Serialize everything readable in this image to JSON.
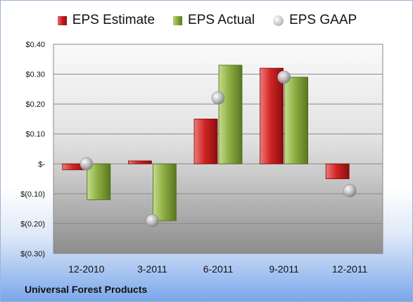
{
  "legend": {
    "estimate": "EPS Estimate",
    "actual": "EPS Actual",
    "gaap": "EPS GAAP"
  },
  "company": "Universal Forest Products",
  "colors": {
    "estimate": "#c41e1e",
    "actual": "#8aaa3e",
    "gaap": "#b8b8b8",
    "plot_bg_top": "#f7f7f7",
    "plot_bg_bottom": "#8e8e8e"
  },
  "chart_data": {
    "type": "bar",
    "categories": [
      "12-2010",
      "3-2011",
      "6-2011",
      "9-2011",
      "12-2011"
    ],
    "series": [
      {
        "name": "EPS Estimate",
        "values": [
          -0.02,
          0.01,
          0.15,
          0.32,
          -0.05
        ]
      },
      {
        "name": "EPS Actual",
        "values": [
          -0.12,
          -0.19,
          0.33,
          0.29,
          null
        ]
      },
      {
        "name": "EPS GAAP",
        "type": "scatter",
        "values": [
          0.0,
          -0.19,
          0.22,
          0.29,
          -0.09
        ]
      }
    ],
    "yticks": [
      "$0.40",
      "$0.30",
      "$0.20",
      "$0.10",
      "$-",
      "$(0.10)",
      "$(0.20)",
      "$(0.30)"
    ],
    "ylim": [
      -0.3,
      0.4
    ],
    "grid": true,
    "legend_position": "top"
  }
}
